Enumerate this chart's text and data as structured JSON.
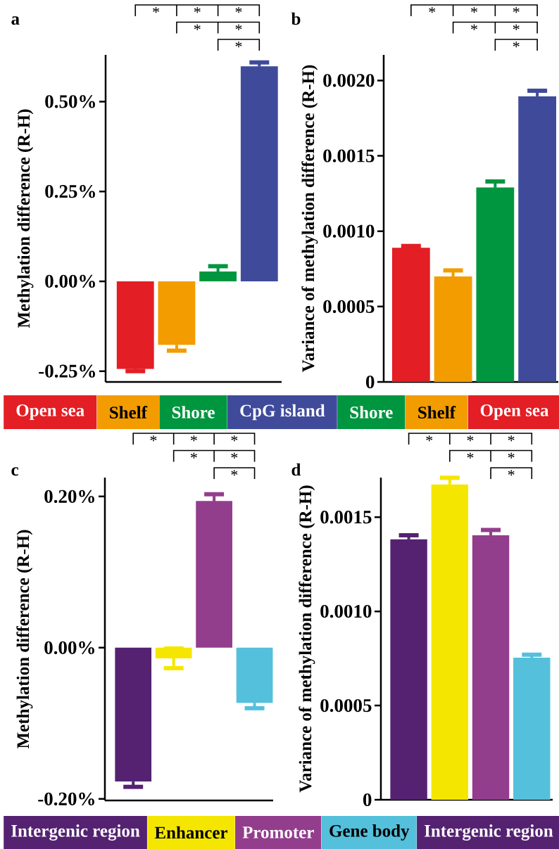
{
  "chart_data": [
    {
      "type": "bar",
      "title": "a",
      "ylabel": "Methylation difference (R-H)",
      "categories": [
        null,
        null,
        null,
        null
      ],
      "values": [
        -0.244,
        -0.177,
        0.027,
        0.598
      ],
      "errors": [
        0.006,
        0.016,
        0.015,
        0.011
      ],
      "colors": [
        "#e31e24",
        "#f39c00",
        "#009640",
        "#3f4b9a"
      ],
      "ylim": [
        -0.28,
        0.63
      ],
      "yticks": [
        {
          "value": -0.25,
          "label": "-0.25%"
        },
        {
          "value": 0,
          "label": "0.00%"
        },
        {
          "value": 0.25,
          "label": "0.25%"
        },
        {
          "value": 0.5,
          "label": "0.50%"
        }
      ],
      "tick_labels": "y",
      "annotations": [
        "*",
        "*",
        "*",
        "*",
        "*",
        "*"
      ]
    },
    {
      "type": "bar",
      "title": "b",
      "ylabel": "Variance of methylation difference (R-H)",
      "categories": [
        null,
        null,
        null,
        null
      ],
      "values": [
        0.00089,
        0.0007,
        0.00129,
        0.001895
      ],
      "errors": [
        1.2e-05,
        4e-05,
        4e-05,
        3.7e-05
      ],
      "colors": [
        "#e31e24",
        "#f39c00",
        "#009640",
        "#3f4b9a"
      ],
      "ylim": [
        0,
        0.00217
      ],
      "yticks": [
        {
          "value": 0,
          "label": "0"
        },
        {
          "value": 0.0005,
          "label": "0.0005"
        },
        {
          "value": 0.001,
          "label": "0.0010"
        },
        {
          "value": 0.0015,
          "label": "0.0015"
        },
        {
          "value": 0.002,
          "label": "0.0020"
        }
      ],
      "tick_labels": "y",
      "annotations": [
        "*",
        "*",
        "*",
        "*",
        "*",
        "*"
      ]
    },
    {
      "type": "other",
      "categories": [
        "Open sea",
        "Shelf",
        "Shore",
        "CpG island",
        "Shore",
        "Shelf",
        "Open sea"
      ],
      "colors": [
        "#e31e24",
        "#f39c00",
        "#009640",
        "#3f4b9a",
        "#009640",
        "#f39c00",
        "#e31e24"
      ]
    },
    {
      "type": "bar",
      "title": "c",
      "ylabel": "Methylation difference (R-H)",
      "categories": [
        null,
        null,
        null,
        null
      ],
      "values": [
        -0.177,
        -0.014,
        0.194,
        -0.073
      ],
      "errors": [
        0.007,
        0.013,
        0.009,
        0.007
      ],
      "colors": [
        "#542271",
        "#f5e600",
        "#933d8d",
        "#54c0db"
      ],
      "ylim": [
        -0.202,
        0.225
      ],
      "yticks": [
        {
          "value": -0.2,
          "label": "-0.20%"
        },
        {
          "value": 0,
          "label": "0.00%"
        },
        {
          "value": 0.2,
          "label": "0.20%"
        }
      ],
      "tick_labels": "y",
      "annotations": [
        "*",
        "*",
        "*",
        "*",
        "*",
        "*"
      ]
    },
    {
      "type": "bar",
      "title": "d",
      "ylabel": "Variance of methylation difference (R-H)",
      "categories": [
        null,
        null,
        null,
        null
      ],
      "values": [
        0.001382,
        0.001674,
        0.001404,
        0.000754
      ],
      "errors": [
        2.2e-05,
        3.5e-05,
        2.8e-05,
        1.6e-05
      ],
      "colors": [
        "#542271",
        "#f5e600",
        "#933d8d",
        "#54c0db"
      ],
      "ylim": [
        0,
        0.00171
      ],
      "yticks": [
        {
          "value": 0,
          "label": "0"
        },
        {
          "value": 0.0005,
          "label": "0.0005"
        },
        {
          "value": 0.001,
          "label": "0.0010"
        },
        {
          "value": 0.0015,
          "label": "0.0015"
        }
      ],
      "tick_labels": "y",
      "annotations": [
        "*",
        "*",
        "*",
        "*",
        "*",
        "*"
      ]
    },
    {
      "type": "other",
      "categories": [
        "Intergenic region",
        "Enhancer",
        "Promoter",
        "Gene body",
        "Intergenic region"
      ],
      "colors": [
        "#542271",
        "#f5e600",
        "#933d8d",
        "#54c0db",
        "#542271"
      ]
    }
  ]
}
